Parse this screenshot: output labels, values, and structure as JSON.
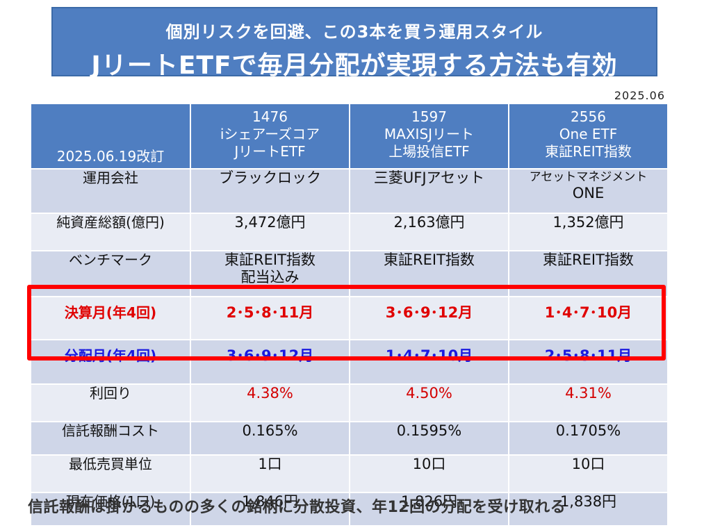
{
  "title": {
    "sub": "個別リスクを回避、この3本を買う運用スタイル",
    "main": "JリートETFで毎月分配が実現する方法も有効"
  },
  "date_note": "2025.06",
  "table": {
    "corner": "2025.06.19改訂",
    "funds": [
      {
        "code": "1476",
        "name1": "iシェアーズコア",
        "name2": "JリートETF"
      },
      {
        "code": "1597",
        "name1": "MAXISJリート",
        "name2": "上場投信ETF"
      },
      {
        "code": "2556",
        "name1": "One ETF",
        "name2": "東証REIT指数"
      }
    ],
    "rows": [
      {
        "label": "運用会社",
        "values": [
          "ブラックロック",
          "三菱UFJアセット",
          "アセットマネジメント",
          "ONE"
        ]
      },
      {
        "label": "純資産総額(億円)",
        "values": [
          "3,472億円",
          "2,163億円",
          "1,352億円"
        ]
      },
      {
        "label": "ベンチマーク",
        "values": [
          "東証REIT指数",
          "配当込み",
          "東証REIT指数",
          "東証REIT指数"
        ]
      },
      {
        "label": "決算月(年4回)",
        "values": [
          "2･5･8･11月",
          "3･6･9･12月",
          "1･4･7･10月"
        ]
      },
      {
        "label": "分配月(年4回)",
        "values": [
          "3･6･9･12月",
          "1･4･7･10月",
          "2･5･8･11月"
        ]
      },
      {
        "label": "利回り",
        "values": [
          "4.38%",
          "4.50%",
          "4.31%"
        ]
      },
      {
        "label": "信託報酬コスト",
        "values": [
          "0.165%",
          "0.1595%",
          "0.1705%"
        ]
      },
      {
        "label": "最低売買単位",
        "values": [
          "1口",
          "10口",
          "10口"
        ]
      },
      {
        "label": "現在価格(1口)",
        "values": [
          "1,846円",
          "1,826円",
          "1,838円"
        ]
      }
    ]
  },
  "footer": "信託報酬は掛かるものの多くの銘柄に分散投資、年12回の分配を受け取れる",
  "colors": {
    "header": "#4f7ec1",
    "settle_text": "#e00000",
    "dist_text": "#1a1adf",
    "highlight_frame": "#ff0000"
  }
}
